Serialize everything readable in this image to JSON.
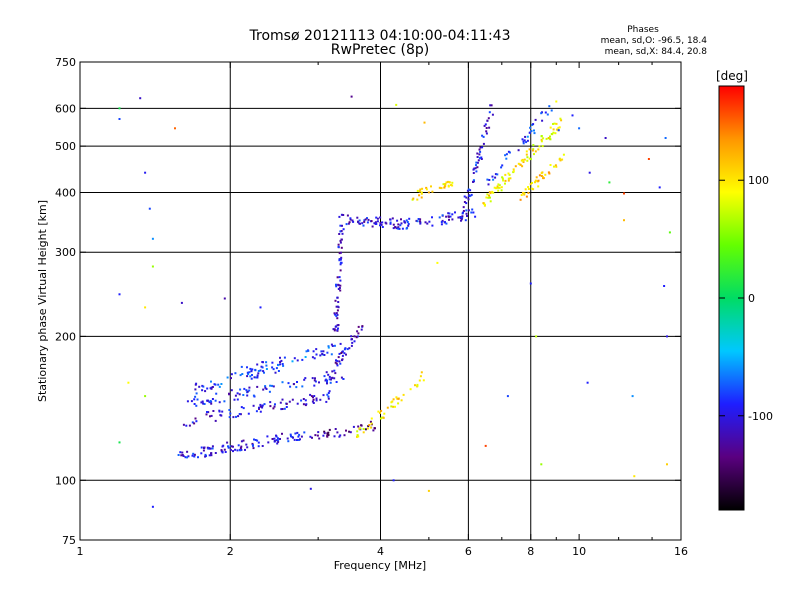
{
  "chart_data": {
    "type": "scatter",
    "title": "Tromsø 20121113 04:10:00-04:11:43",
    "subtitle": "RwPretec (8p)",
    "phases_block": {
      "heading": "Phases",
      "line_o": "mean, sd,O: -96.5, 18.4",
      "line_x": "mean, sd,X:  84.4, 20.8"
    },
    "xlabel": "Frequency [MHz]",
    "ylabel": "Stationary phase Virtual Height [km]",
    "x_scale": "log",
    "y_scale": "log",
    "xlim": [
      1,
      16
    ],
    "ylim": [
      75,
      750
    ],
    "x_ticks": [
      1,
      2,
      4,
      6,
      8,
      10,
      16
    ],
    "x_tick_labels": [
      "1",
      "2",
      "4",
      "6",
      "8",
      "10",
      "16"
    ],
    "x_gridlines": [
      2,
      4,
      6,
      8
    ],
    "y_ticks": [
      75,
      100,
      200,
      300,
      400,
      500,
      600,
      750
    ],
    "y_tick_labels": [
      "75",
      "100",
      "200",
      "300",
      "400",
      "500",
      "600",
      "750"
    ],
    "y_gridlines": [
      100,
      200,
      300,
      400,
      500,
      600
    ],
    "grid": true,
    "colorbar": {
      "label": "[deg]",
      "range": [
        -180,
        180
      ],
      "ticks": [
        100,
        0,
        -100
      ],
      "tick_labels": [
        "100",
        "0",
        "-100"
      ],
      "colormap": "rainbow-black-to-red",
      "stops": [
        "#000000",
        "#5a0080",
        "#1e1eff",
        "#00c8ff",
        "#00dc64",
        "#64ff00",
        "#ffff00",
        "#ff9600",
        "#ff0000"
      ]
    },
    "traces": [
      {
        "f_start": 1.55,
        "f_end": 3.0,
        "h_start": 112,
        "h_end": 126,
        "phase": -100,
        "count": 110
      },
      {
        "f_start": 1.62,
        "f_end": 3.2,
        "h_start": 133,
        "h_end": 150,
        "phase": -105,
        "count": 80
      },
      {
        "f_start": 1.62,
        "f_end": 3.4,
        "h_start": 145,
        "h_end": 165,
        "phase": -95,
        "count": 80
      },
      {
        "f_start": 1.7,
        "f_end": 2.6,
        "h_start": 155,
        "h_end": 175,
        "phase": -88,
        "count": 55
      },
      {
        "f_start": 2.1,
        "f_end": 3.3,
        "h_start": 168,
        "h_end": 190,
        "phase": -80,
        "count": 45
      },
      {
        "f_start": 3.0,
        "f_end": 3.9,
        "h_start": 124,
        "h_end": 130,
        "phase": -125,
        "count": 35
      },
      {
        "f_start": 3.1,
        "f_end": 3.7,
        "h_start": 160,
        "h_end": 215,
        "phase": -110,
        "count": 45
      },
      {
        "f_start": 3.25,
        "f_end": 3.35,
        "h_start": 200,
        "h_end": 350,
        "phase": -108,
        "count": 60
      },
      {
        "f_start": 3.32,
        "f_end": 4.5,
        "h_start": 352,
        "h_end": 343,
        "phase": -105,
        "count": 65
      },
      {
        "f_start": 4.5,
        "f_end": 6.3,
        "h_start": 343,
        "h_end": 362,
        "phase": -100,
        "count": 55
      },
      {
        "f_start": 5.9,
        "f_end": 6.7,
        "h_start": 370,
        "h_end": 600,
        "phase": -100,
        "count": 55
      },
      {
        "f_start": 3.6,
        "f_end": 4.9,
        "h_start": 125,
        "h_end": 165,
        "phase": 100,
        "count": 45
      },
      {
        "f_start": 4.6,
        "f_end": 5.6,
        "h_start": 390,
        "h_end": 420,
        "phase": 100,
        "count": 35
      },
      {
        "f_start": 6.4,
        "f_end": 9.2,
        "h_start": 380,
        "h_end": 560,
        "phase": 95,
        "count": 90
      },
      {
        "f_start": 7.6,
        "f_end": 9.4,
        "h_start": 390,
        "h_end": 480,
        "phase": 110,
        "count": 40
      },
      {
        "f_start": 6.5,
        "f_end": 8.8,
        "h_start": 420,
        "h_end": 600,
        "phase": -85,
        "count": 40
      }
    ],
    "scattered_points": [
      {
        "f": 1.2,
        "h": 600,
        "phase": 10
      },
      {
        "f": 1.2,
        "h": 570,
        "phase": -80
      },
      {
        "f": 1.32,
        "h": 630,
        "phase": -110
      },
      {
        "f": 1.55,
        "h": 545,
        "phase": 150
      },
      {
        "f": 1.35,
        "h": 440,
        "phase": -95
      },
      {
        "f": 1.38,
        "h": 370,
        "phase": -80
      },
      {
        "f": 1.4,
        "h": 320,
        "phase": -60
      },
      {
        "f": 1.4,
        "h": 280,
        "phase": 60
      },
      {
        "f": 1.2,
        "h": 245,
        "phase": -90
      },
      {
        "f": 1.35,
        "h": 230,
        "phase": 100
      },
      {
        "f": 1.6,
        "h": 235,
        "phase": -110
      },
      {
        "f": 1.95,
        "h": 240,
        "phase": -120
      },
      {
        "f": 2.3,
        "h": 230,
        "phase": -90
      },
      {
        "f": 1.25,
        "h": 160,
        "phase": 90
      },
      {
        "f": 1.35,
        "h": 150,
        "phase": 60
      },
      {
        "f": 1.2,
        "h": 120,
        "phase": 10
      },
      {
        "f": 1.4,
        "h": 88,
        "phase": -90
      },
      {
        "f": 2.9,
        "h": 96,
        "phase": -100
      },
      {
        "f": 3.5,
        "h": 635,
        "phase": -130
      },
      {
        "f": 4.3,
        "h": 610,
        "phase": 80
      },
      {
        "f": 4.9,
        "h": 560,
        "phase": 120
      },
      {
        "f": 4.25,
        "h": 100,
        "phase": -90
      },
      {
        "f": 5.0,
        "h": 95,
        "phase": 110
      },
      {
        "f": 5.2,
        "h": 285,
        "phase": 90
      },
      {
        "f": 8.0,
        "h": 258,
        "phase": -90
      },
      {
        "f": 8.2,
        "h": 200,
        "phase": 70
      },
      {
        "f": 7.2,
        "h": 150,
        "phase": -80
      },
      {
        "f": 6.5,
        "h": 118,
        "phase": 160
      },
      {
        "f": 8.4,
        "h": 108,
        "phase": 60
      },
      {
        "f": 10.4,
        "h": 160,
        "phase": -90
      },
      {
        "f": 10.5,
        "h": 440,
        "phase": -100
      },
      {
        "f": 10.0,
        "h": 545,
        "phase": -70
      },
      {
        "f": 11.3,
        "h": 520,
        "phase": -110
      },
      {
        "f": 11.5,
        "h": 420,
        "phase": 20
      },
      {
        "f": 12.3,
        "h": 398,
        "phase": 160
      },
      {
        "f": 12.3,
        "h": 350,
        "phase": 120
      },
      {
        "f": 12.8,
        "h": 150,
        "phase": -60
      },
      {
        "f": 12.9,
        "h": 102,
        "phase": 100
      },
      {
        "f": 13.8,
        "h": 470,
        "phase": 160
      },
      {
        "f": 14.5,
        "h": 410,
        "phase": -90
      },
      {
        "f": 14.8,
        "h": 255,
        "phase": -90
      },
      {
        "f": 15.0,
        "h": 200,
        "phase": -100
      },
      {
        "f": 15.0,
        "h": 108,
        "phase": 110
      },
      {
        "f": 15.2,
        "h": 330,
        "phase": 40
      },
      {
        "f": 9.7,
        "h": 580,
        "phase": -90
      },
      {
        "f": 9.0,
        "h": 620,
        "phase": 90
      },
      {
        "f": 9.1,
        "h": 540,
        "phase": -80
      },
      {
        "f": 14.9,
        "h": 520,
        "phase": -70
      }
    ]
  }
}
